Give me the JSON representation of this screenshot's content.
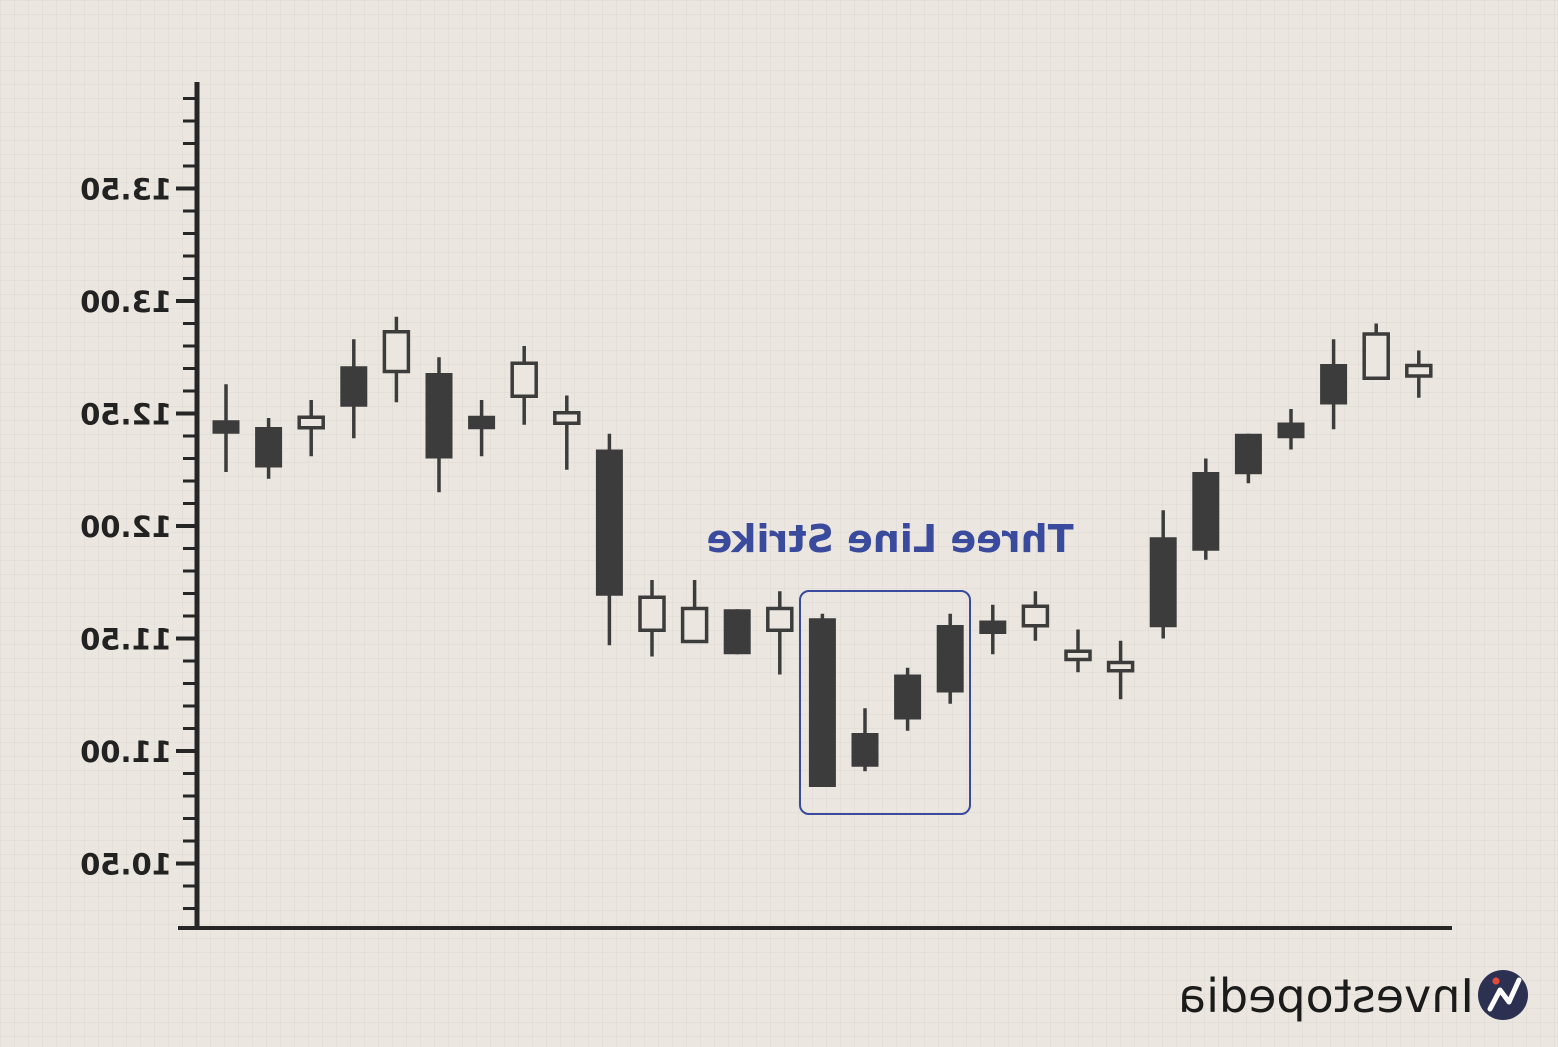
{
  "chart_data": {
    "type": "candlestick",
    "title": "",
    "xlabel": "",
    "ylabel": "",
    "ylim": [
      10.2,
      14.0
    ],
    "y_ticks": [
      {
        "value": 10.5,
        "label": "10.50"
      },
      {
        "value": 11.0,
        "label": "11.00"
      },
      {
        "value": 11.5,
        "label": "11.50"
      },
      {
        "value": 12.0,
        "label": "12.00"
      },
      {
        "value": 12.5,
        "label": "12.50"
      },
      {
        "value": 13.0,
        "label": "13.00"
      },
      {
        "value": 13.5,
        "label": "13.50"
      }
    ],
    "grid": true,
    "mirrored": true,
    "candles": [
      {
        "open": 12.47,
        "close": 12.41,
        "high": 12.63,
        "low": 12.24
      },
      {
        "open": 12.44,
        "close": 12.26,
        "high": 12.48,
        "low": 12.21
      },
      {
        "open": 12.43,
        "close": 12.49,
        "high": 12.56,
        "low": 12.31
      },
      {
        "open": 12.71,
        "close": 12.53,
        "high": 12.83,
        "low": 12.39
      },
      {
        "open": 12.68,
        "close": 12.87,
        "high": 12.93,
        "low": 12.55
      },
      {
        "open": 12.68,
        "close": 12.3,
        "high": 12.75,
        "low": 12.15
      },
      {
        "open": 12.49,
        "close": 12.43,
        "high": 12.56,
        "low": 12.31
      },
      {
        "open": 12.57,
        "close": 12.73,
        "high": 12.8,
        "low": 12.45
      },
      {
        "open": 12.45,
        "close": 12.51,
        "high": 12.58,
        "low": 12.25
      },
      {
        "open": 12.34,
        "close": 11.69,
        "high": 12.41,
        "low": 11.47
      },
      {
        "open": 11.53,
        "close": 11.69,
        "high": 11.76,
        "low": 11.42
      },
      {
        "open": 11.48,
        "close": 11.64,
        "high": 11.76,
        "low": 11.48
      },
      {
        "open": 11.63,
        "close": 11.43,
        "high": 11.63,
        "low": 11.43
      },
      {
        "open": 11.53,
        "close": 11.64,
        "high": 11.71,
        "low": 11.34
      },
      {
        "open": 11.59,
        "close": 10.84,
        "high": 11.61,
        "low": 10.84
      },
      {
        "open": 11.08,
        "close": 10.93,
        "high": 11.19,
        "low": 10.91
      },
      {
        "open": 11.34,
        "close": 11.14,
        "high": 11.37,
        "low": 11.09
      },
      {
        "open": 11.56,
        "close": 11.26,
        "high": 11.61,
        "low": 11.21
      },
      {
        "open": 11.58,
        "close": 11.52,
        "high": 11.65,
        "low": 11.43
      },
      {
        "open": 11.55,
        "close": 11.65,
        "high": 11.71,
        "low": 11.49
      },
      {
        "open": 11.4,
        "close": 11.45,
        "high": 11.54,
        "low": 11.35
      },
      {
        "open": 11.35,
        "close": 11.4,
        "high": 11.49,
        "low": 11.23
      },
      {
        "open": 11.95,
        "close": 11.55,
        "high": 12.07,
        "low": 11.5
      },
      {
        "open": 12.24,
        "close": 11.89,
        "high": 12.3,
        "low": 11.85
      },
      {
        "open": 12.41,
        "close": 12.23,
        "high": 12.41,
        "low": 12.19
      },
      {
        "open": 12.46,
        "close": 12.39,
        "high": 12.52,
        "low": 12.34
      },
      {
        "open": 12.72,
        "close": 12.54,
        "high": 12.83,
        "low": 12.43
      },
      {
        "open": 12.65,
        "close": 12.86,
        "high": 12.9,
        "low": 12.65
      },
      {
        "open": 12.66,
        "close": 12.72,
        "high": 12.78,
        "low": 12.57
      }
    ],
    "annotations": [
      {
        "text": "Three Line Strike",
        "highlighted_candles": [
          14,
          15,
          16,
          17
        ],
        "color": "#3a4a9c"
      }
    ]
  },
  "brand": {
    "name": "Investopedia",
    "logo_colors": [
      "#2c3152",
      "#ffffff",
      "#e04c3c"
    ]
  },
  "colors": {
    "background": "#ebe7e0",
    "grid": "#ddd8d0",
    "axis": "#262626",
    "candle": "#3c3c3c",
    "hollow_fill": "#ebe7e0",
    "annotation": "#3a4a9c"
  }
}
